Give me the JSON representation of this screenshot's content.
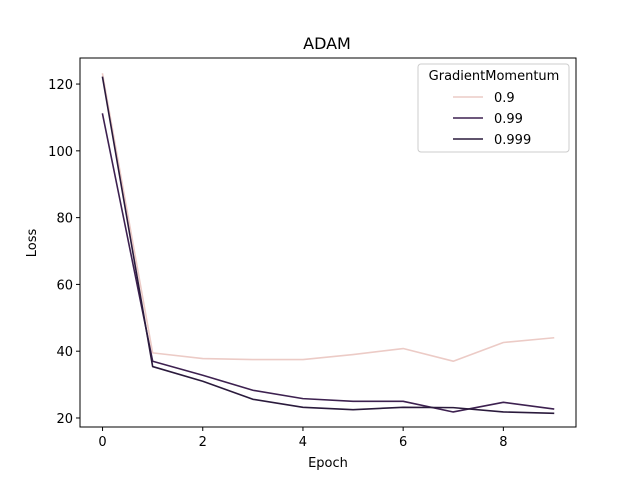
{
  "chart_data": {
    "type": "line",
    "title": "ADAM",
    "xlabel": "Epoch",
    "ylabel": "Loss",
    "xlim": [
      -0.45,
      9.45
    ],
    "ylim": [
      17.3,
      127.8
    ],
    "xticks": [
      0,
      2,
      4,
      6,
      8
    ],
    "yticks": [
      20,
      40,
      60,
      80,
      100,
      120
    ],
    "grid": false,
    "legend": {
      "title": "GradientMomentum",
      "placement": "top-right"
    },
    "x": [
      0,
      1,
      2,
      3,
      4,
      5,
      6,
      7,
      8,
      9
    ],
    "series": [
      {
        "name": "0.9",
        "color": "#eccbc6",
        "values": [
          123,
          39.5,
          37.8,
          37.5,
          37.5,
          39,
          40.8,
          37,
          42.6,
          44
        ]
      },
      {
        "name": "0.99",
        "color": "#3d2150",
        "values": [
          111,
          37,
          32.8,
          28.3,
          25.8,
          25,
          25,
          21.8,
          24.7,
          22.7
        ]
      },
      {
        "name": "0.999",
        "color": "#2a1a3c",
        "values": [
          122,
          35.4,
          31,
          25.6,
          23.2,
          22.5,
          23.2,
          23.1,
          21.8,
          21.4
        ]
      }
    ]
  }
}
